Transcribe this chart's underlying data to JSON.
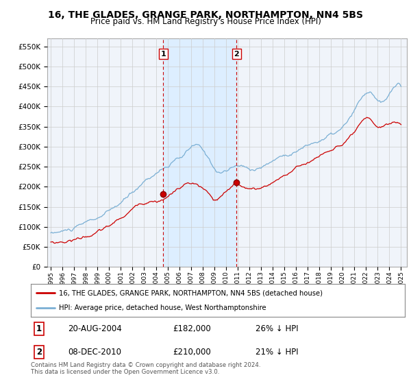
{
  "title": "16, THE GLADES, GRANGE PARK, NORTHAMPTON, NN4 5BS",
  "subtitle": "Price paid vs. HM Land Registry's House Price Index (HPI)",
  "legend_line1": "16, THE GLADES, GRANGE PARK, NORTHAMPTON, NN4 5BS (detached house)",
  "legend_line2": "HPI: Average price, detached house, West Northamptonshire",
  "annotation1_label": "1",
  "annotation1_date": "20-AUG-2004",
  "annotation1_price": "£182,000",
  "annotation1_hpi": "26% ↓ HPI",
  "annotation1_year": 2004.63,
  "annotation1_value": 182000,
  "annotation2_label": "2",
  "annotation2_date": "08-DEC-2010",
  "annotation2_price": "£210,000",
  "annotation2_hpi": "21% ↓ HPI",
  "annotation2_year": 2010.92,
  "annotation2_value": 210000,
  "footer1": "Contains HM Land Registry data © Crown copyright and database right 2024.",
  "footer2": "This data is licensed under the Open Government Licence v3.0.",
  "red_color": "#cc0000",
  "blue_color": "#7aafd4",
  "shade_color": "#ddeeff",
  "vline_color": "#cc0000",
  "background_color": "#ffffff",
  "plot_bg_color": "#f0f4fa",
  "grid_color": "#cccccc",
  "ylim": [
    0,
    570000
  ],
  "yticks": [
    0,
    50000,
    100000,
    150000,
    200000,
    250000,
    300000,
    350000,
    400000,
    450000,
    500000,
    550000
  ],
  "xlim_min": 1994.7,
  "xlim_max": 2025.5
}
